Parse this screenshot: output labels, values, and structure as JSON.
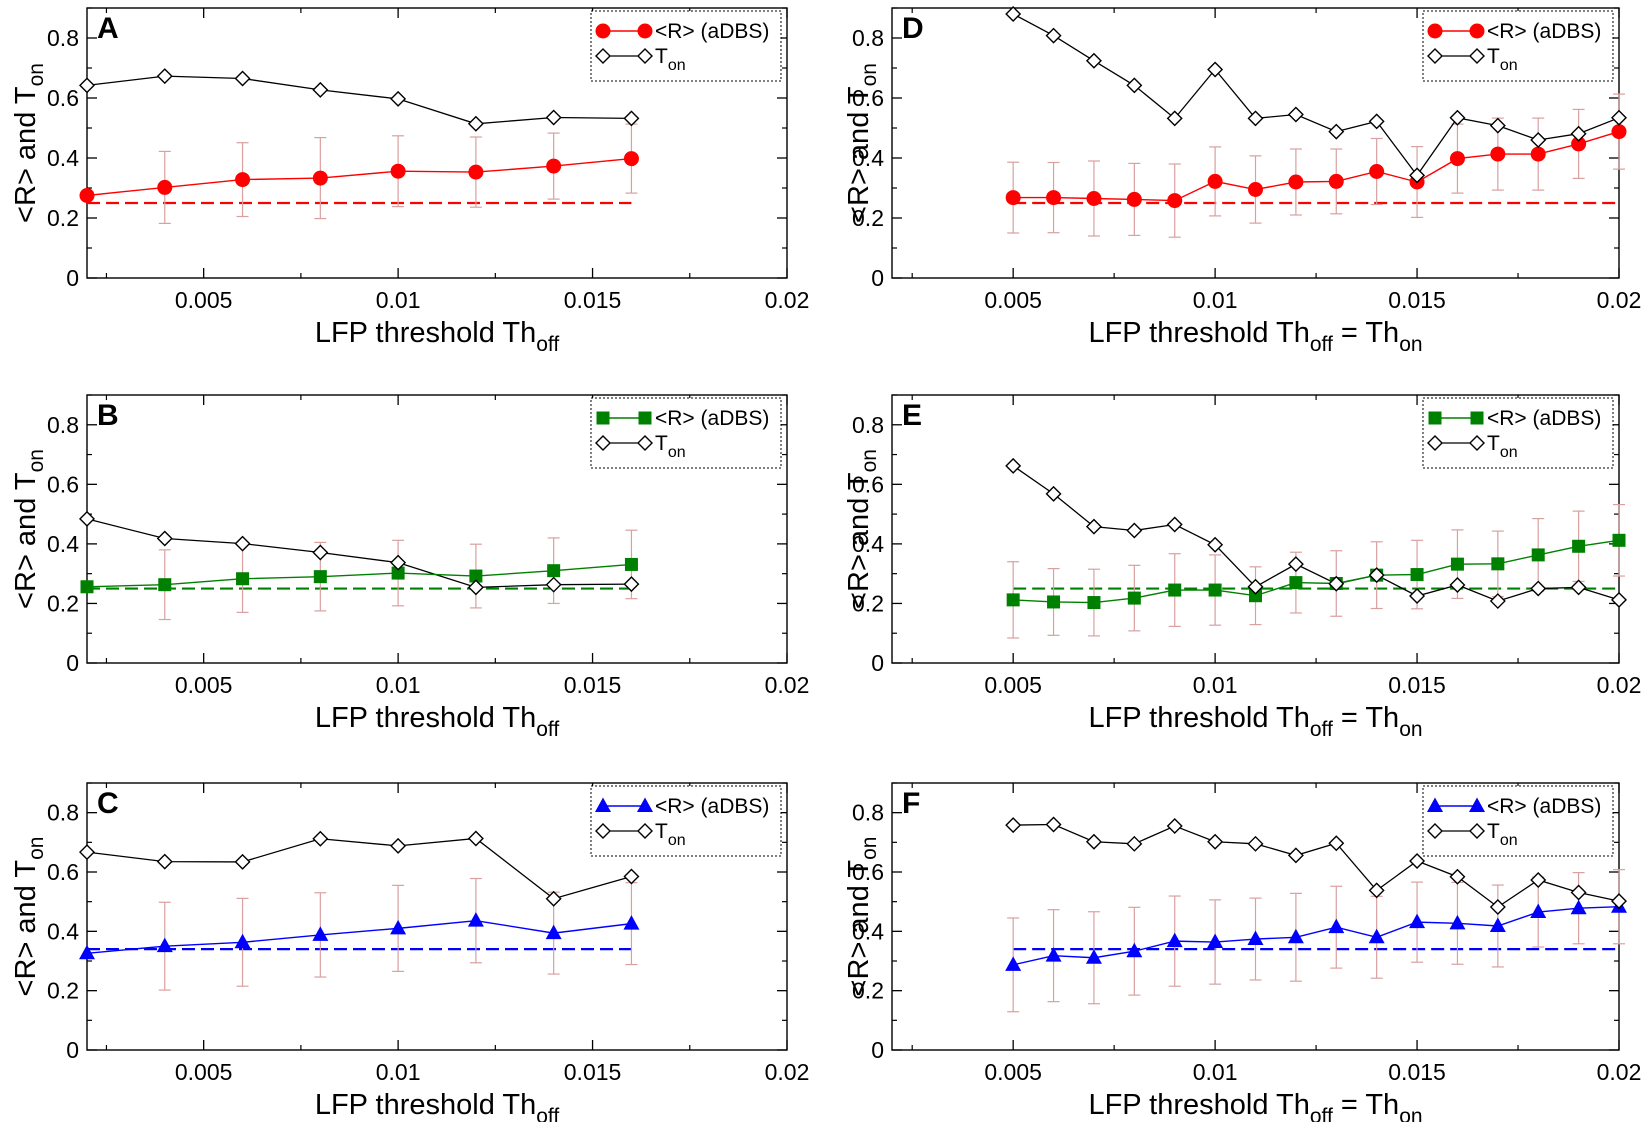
{
  "figure": {
    "panels": [
      "A",
      "B",
      "C",
      "D",
      "E",
      "F"
    ],
    "common": {
      "y_label_parts": [
        "<R>  and  T",
        "on"
      ],
      "y_ticks": [
        "0",
        "0.2",
        "0.4",
        "0.6",
        "0.8"
      ],
      "x_ticks": [
        "0.005",
        "0.01",
        "0.015",
        "0.02"
      ],
      "legend_series_label": "<R> (aDBS)",
      "legend_ton_parts": [
        "T",
        "on"
      ],
      "x_label_left_parts": [
        "LFP threshold Th",
        "off"
      ],
      "x_label_right_parts": [
        "LFP threshold Th",
        "off",
        " = Th",
        "on"
      ]
    }
  },
  "chart_data": [
    {
      "panel": "A",
      "type": "line",
      "marker": "circle",
      "color": "#ff0000",
      "xlim": [
        0.002,
        0.02
      ],
      "ylim": [
        0,
        0.9
      ],
      "x": [
        0.002,
        0.004,
        0.006,
        0.008,
        0.01,
        0.012,
        0.014,
        0.016
      ],
      "series": [
        {
          "name": "<R> (aDBS)",
          "values": [
            0.275,
            0.302,
            0.328,
            0.333,
            0.356,
            0.353,
            0.373,
            0.398
          ],
          "errors": [
            0.0,
            0.12,
            0.123,
            0.135,
            0.118,
            0.117,
            0.11,
            0.115
          ]
        },
        {
          "name": "T_on",
          "values": [
            0.642,
            0.673,
            0.665,
            0.627,
            0.597,
            0.514,
            0.535,
            0.532
          ]
        }
      ],
      "baseline": 0.25,
      "xlabel": "LFP threshold Th_off",
      "ylabel": "<R> and T_on"
    },
    {
      "panel": "B",
      "type": "line",
      "marker": "square",
      "color": "#008000",
      "xlim": [
        0.002,
        0.02
      ],
      "ylim": [
        0,
        0.9
      ],
      "x": [
        0.002,
        0.004,
        0.006,
        0.008,
        0.01,
        0.012,
        0.014,
        0.016
      ],
      "series": [
        {
          "name": "<R> (aDBS)",
          "values": [
            0.256,
            0.263,
            0.283,
            0.29,
            0.302,
            0.292,
            0.31,
            0.331
          ],
          "errors": [
            0.0,
            0.117,
            0.113,
            0.115,
            0.11,
            0.107,
            0.11,
            0.115
          ]
        },
        {
          "name": "T_on",
          "values": [
            0.484,
            0.418,
            0.401,
            0.371,
            0.337,
            0.254,
            0.263,
            0.265
          ]
        }
      ],
      "baseline": 0.25,
      "xlabel": "LFP threshold Th_off",
      "ylabel": "<R> and T_on"
    },
    {
      "panel": "C",
      "type": "line",
      "marker": "triangle",
      "color": "#0000ff",
      "xlim": [
        0.002,
        0.02
      ],
      "ylim": [
        0,
        0.9
      ],
      "x": [
        0.002,
        0.004,
        0.006,
        0.008,
        0.01,
        0.012,
        0.014,
        0.016
      ],
      "series": [
        {
          "name": "<R> (aDBS)",
          "values": [
            0.326,
            0.35,
            0.363,
            0.388,
            0.41,
            0.436,
            0.394,
            0.426
          ],
          "errors": [
            0.0,
            0.148,
            0.148,
            0.142,
            0.145,
            0.142,
            0.138,
            0.138
          ]
        },
        {
          "name": "T_on",
          "values": [
            0.667,
            0.635,
            0.634,
            0.712,
            0.688,
            0.713,
            0.51,
            0.585
          ]
        }
      ],
      "baseline": 0.34,
      "xlabel": "LFP threshold Th_off",
      "ylabel": "<R> and T_on"
    },
    {
      "panel": "D",
      "type": "line",
      "marker": "circle",
      "color": "#ff0000",
      "xlim": [
        0.002,
        0.02
      ],
      "ylim": [
        0,
        0.9
      ],
      "x": [
        0.005,
        0.006,
        0.007,
        0.008,
        0.009,
        0.01,
        0.011,
        0.012,
        0.013,
        0.014,
        0.015,
        0.016,
        0.017,
        0.018,
        0.019,
        0.02
      ],
      "series": [
        {
          "name": "<R> (aDBS)",
          "values": [
            0.268,
            0.268,
            0.265,
            0.262,
            0.258,
            0.322,
            0.295,
            0.32,
            0.322,
            0.355,
            0.32,
            0.398,
            0.413,
            0.413,
            0.447,
            0.488
          ],
          "errors": [
            0.118,
            0.117,
            0.125,
            0.12,
            0.122,
            0.115,
            0.112,
            0.11,
            0.108,
            0.11,
            0.118,
            0.115,
            0.12,
            0.12,
            0.115,
            0.125
          ]
        },
        {
          "name": "T_on",
          "values": [
            0.88,
            0.808,
            0.724,
            0.642,
            0.532,
            0.695,
            0.532,
            0.545,
            0.488,
            0.522,
            0.342,
            0.534,
            0.508,
            0.46,
            0.481,
            0.534
          ]
        }
      ],
      "baseline": 0.25,
      "xlabel": "LFP threshold Th_off = Th_on",
      "ylabel": "<R> and T_on"
    },
    {
      "panel": "E",
      "type": "line",
      "marker": "square",
      "color": "#008000",
      "xlim": [
        0.002,
        0.02
      ],
      "ylim": [
        0,
        0.9
      ],
      "x": [
        0.005,
        0.006,
        0.007,
        0.008,
        0.009,
        0.01,
        0.011,
        0.012,
        0.013,
        0.014,
        0.015,
        0.016,
        0.017,
        0.018,
        0.019,
        0.02
      ],
      "series": [
        {
          "name": "<R> (aDBS)",
          "values": [
            0.212,
            0.205,
            0.203,
            0.218,
            0.245,
            0.245,
            0.226,
            0.27,
            0.267,
            0.295,
            0.297,
            0.332,
            0.333,
            0.363,
            0.392,
            0.412
          ],
          "errors": [
            0.128,
            0.112,
            0.112,
            0.11,
            0.122,
            0.118,
            0.097,
            0.102,
            0.11,
            0.112,
            0.115,
            0.115,
            0.11,
            0.122,
            0.118,
            0.12
          ]
        },
        {
          "name": "T_on",
          "values": [
            0.662,
            0.568,
            0.458,
            0.445,
            0.465,
            0.397,
            0.256,
            0.332,
            0.266,
            0.295,
            0.225,
            0.262,
            0.208,
            0.25,
            0.254,
            0.212
          ]
        }
      ],
      "baseline": 0.25,
      "xlabel": "LFP threshold Th_off = Th_on",
      "ylabel": "<R> and T_on"
    },
    {
      "panel": "F",
      "type": "line",
      "marker": "triangle",
      "color": "#0000ff",
      "xlim": [
        0.002,
        0.02
      ],
      "ylim": [
        0,
        0.9
      ],
      "x": [
        0.005,
        0.006,
        0.007,
        0.008,
        0.009,
        0.01,
        0.011,
        0.012,
        0.013,
        0.014,
        0.015,
        0.016,
        0.017,
        0.018,
        0.019,
        0.02
      ],
      "series": [
        {
          "name": "<R> (aDBS)",
          "values": [
            0.287,
            0.318,
            0.311,
            0.333,
            0.367,
            0.364,
            0.374,
            0.38,
            0.414,
            0.38,
            0.431,
            0.427,
            0.418,
            0.465,
            0.478,
            0.483
          ],
          "errors": [
            0.158,
            0.155,
            0.155,
            0.148,
            0.152,
            0.142,
            0.138,
            0.148,
            0.138,
            0.138,
            0.135,
            0.138,
            0.138,
            0.118,
            0.12,
            0.125
          ]
        },
        {
          "name": "T_on",
          "values": [
            0.758,
            0.76,
            0.702,
            0.695,
            0.755,
            0.702,
            0.695,
            0.656,
            0.697,
            0.538,
            0.637,
            0.584,
            0.482,
            0.573,
            0.531,
            0.502
          ]
        }
      ],
      "baseline": 0.34,
      "xlabel": "LFP threshold Th_off = Th_on",
      "ylabel": "<R> and T_on"
    }
  ]
}
